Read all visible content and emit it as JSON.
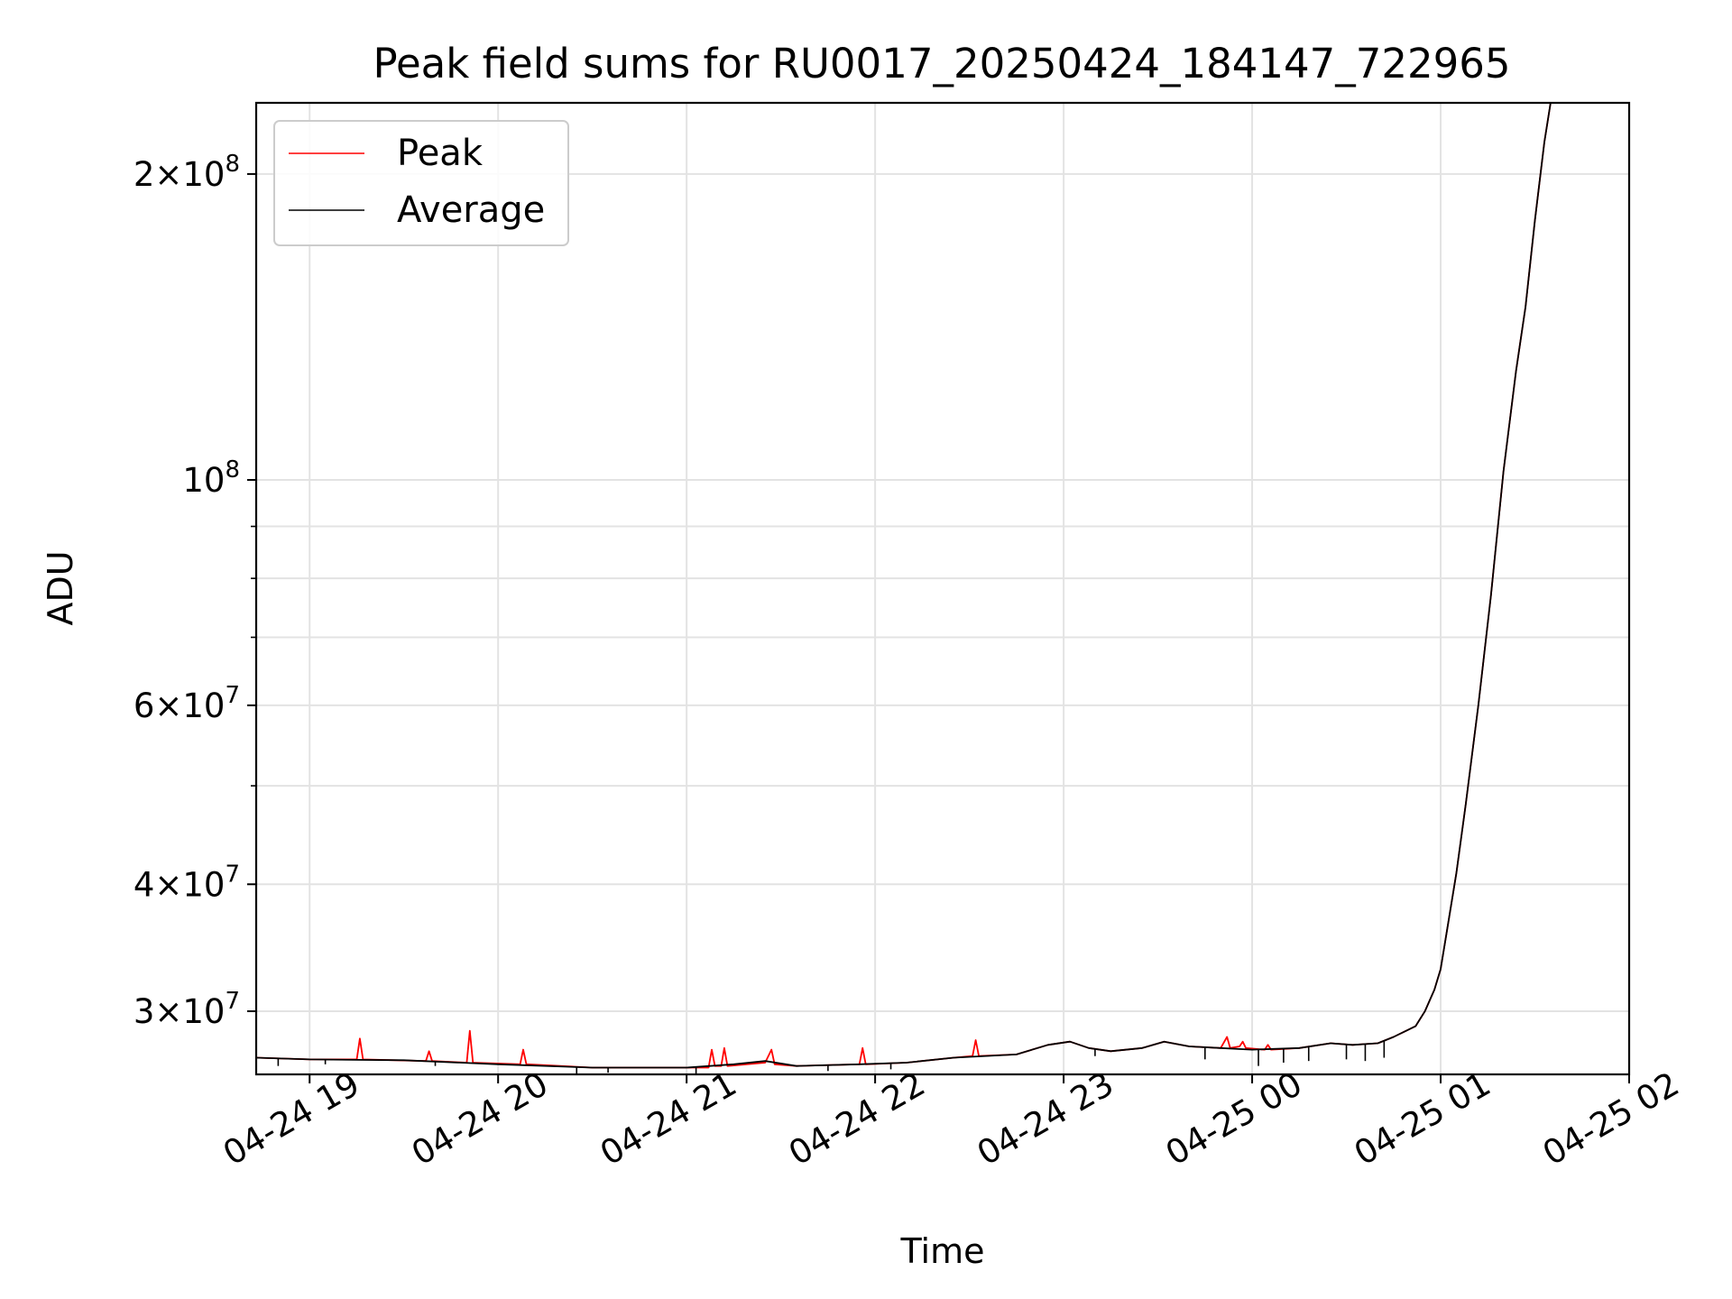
{
  "chart_data": {
    "type": "line",
    "title": "Peak field sums for RU0017_20250424_184147_722965",
    "xlabel": "Time",
    "ylabel": "ADU",
    "x_range": [
      "2025-04-24 18:43",
      "2025-04-25 02:00"
    ],
    "ylim": [
      26000000,
      235000000
    ],
    "yscale": "log",
    "grid": true,
    "legend_position": "top-left",
    "x_ticks": [
      {
        "t": "2025-04-24 19:00",
        "label": "04-24 19"
      },
      {
        "t": "2025-04-24 20:00",
        "label": "04-24 20"
      },
      {
        "t": "2025-04-24 21:00",
        "label": "04-24 21"
      },
      {
        "t": "2025-04-24 22:00",
        "label": "04-24 22"
      },
      {
        "t": "2025-04-24 23:00",
        "label": "04-24 23"
      },
      {
        "t": "2025-04-25 00:00",
        "label": "04-25 00"
      },
      {
        "t": "2025-04-25 01:00",
        "label": "04-25 01"
      },
      {
        "t": "2025-04-25 02:00",
        "label": "04-25 02"
      }
    ],
    "y_ticks": [
      {
        "v": 30000000,
        "label": "3×10⁷",
        "mant": "3",
        "exp": "7"
      },
      {
        "v": 40000000,
        "label": "4×10⁷",
        "mant": "4",
        "exp": "7"
      },
      {
        "v": 60000000,
        "label": "6×10⁷",
        "mant": "6",
        "exp": "7"
      },
      {
        "v": 100000000,
        "label": "10⁸",
        "mant": "",
        "exp": "8"
      },
      {
        "v": 200000000,
        "label": "2×10⁸",
        "mant": "2",
        "exp": "8"
      }
    ],
    "y_minor_ticks": [
      50000000,
      70000000,
      80000000,
      90000000
    ],
    "series": [
      {
        "name": "Peak",
        "color": "#ff0000",
        "points": [
          [
            "2025-04-24 18:43",
            27000000
          ],
          [
            "2025-04-24 19:00",
            26900000
          ],
          [
            "2025-04-24 19:15",
            26900000
          ],
          [
            "2025-04-24 19:16",
            28200000
          ],
          [
            "2025-04-24 19:17",
            26900000
          ],
          [
            "2025-04-24 19:37",
            26800000
          ],
          [
            "2025-04-24 19:38",
            27400000
          ],
          [
            "2025-04-24 19:39",
            26800000
          ],
          [
            "2025-04-24 19:50",
            26700000
          ],
          [
            "2025-04-24 19:51",
            28700000
          ],
          [
            "2025-04-24 19:52",
            26700000
          ],
          [
            "2025-04-24 20:07",
            26600000
          ],
          [
            "2025-04-24 20:08",
            27500000
          ],
          [
            "2025-04-24 20:09",
            26600000
          ],
          [
            "2025-04-24 20:30",
            26400000
          ],
          [
            "2025-04-24 21:00",
            26400000
          ],
          [
            "2025-04-24 21:07",
            26400000
          ],
          [
            "2025-04-24 21:08",
            27500000
          ],
          [
            "2025-04-24 21:09",
            26500000
          ],
          [
            "2025-04-24 21:11",
            26500000
          ],
          [
            "2025-04-24 21:12",
            27600000
          ],
          [
            "2025-04-24 21:13",
            26500000
          ],
          [
            "2025-04-24 21:25",
            26700000
          ],
          [
            "2025-04-24 21:27",
            27500000
          ],
          [
            "2025-04-24 21:28",
            26600000
          ],
          [
            "2025-04-24 21:35",
            26500000
          ],
          [
            "2025-04-24 21:55",
            26600000
          ],
          [
            "2025-04-24 21:56",
            27600000
          ],
          [
            "2025-04-24 21:57",
            26600000
          ],
          [
            "2025-04-24 22:10",
            26700000
          ],
          [
            "2025-04-24 22:25",
            27000000
          ],
          [
            "2025-04-24 22:31",
            27100000
          ],
          [
            "2025-04-24 22:32",
            28100000
          ],
          [
            "2025-04-24 22:33",
            27100000
          ],
          [
            "2025-04-24 22:45",
            27200000
          ],
          [
            "2025-04-24 22:55",
            27800000
          ],
          [
            "2025-04-24 23:02",
            28000000
          ],
          [
            "2025-04-24 23:08",
            27600000
          ],
          [
            "2025-04-24 23:15",
            27400000
          ],
          [
            "2025-04-24 23:25",
            27600000
          ],
          [
            "2025-04-24 23:32",
            28000000
          ],
          [
            "2025-04-24 23:40",
            27700000
          ],
          [
            "2025-04-24 23:50",
            27600000
          ],
          [
            "2025-04-24 23:52",
            28300000
          ],
          [
            "2025-04-24 23:53",
            27600000
          ],
          [
            "2025-04-24 23:56",
            27700000
          ],
          [
            "2025-04-24 23:57",
            28000000
          ],
          [
            "2025-04-24 23:58",
            27600000
          ],
          [
            "2025-04-25 00:04",
            27500000
          ],
          [
            "2025-04-25 00:05",
            27800000
          ],
          [
            "2025-04-25 00:06",
            27500000
          ],
          [
            "2025-04-25 00:15",
            27600000
          ],
          [
            "2025-04-25 00:25",
            27900000
          ],
          [
            "2025-04-25 00:32",
            27800000
          ],
          [
            "2025-04-25 00:40",
            27900000
          ],
          [
            "2025-04-25 00:45",
            28300000
          ],
          [
            "2025-04-25 00:52",
            29000000
          ],
          [
            "2025-04-25 00:55",
            30000000
          ],
          [
            "2025-04-25 00:58",
            31500000
          ],
          [
            "2025-04-25 01:00",
            33000000
          ],
          [
            "2025-04-25 01:02",
            36000000
          ],
          [
            "2025-04-25 01:05",
            41000000
          ],
          [
            "2025-04-25 01:08",
            48000000
          ],
          [
            "2025-04-25 01:12",
            60000000
          ],
          [
            "2025-04-25 01:16",
            77000000
          ],
          [
            "2025-04-25 01:20",
            102000000
          ],
          [
            "2025-04-25 01:24",
            128000000
          ],
          [
            "2025-04-25 01:27",
            148000000
          ],
          [
            "2025-04-25 01:30",
            180000000
          ],
          [
            "2025-04-25 01:33",
            215000000
          ],
          [
            "2025-04-25 01:35",
            235000000
          ]
        ]
      },
      {
        "name": "Average",
        "color": "#000000",
        "points": [
          [
            "2025-04-24 18:43",
            27000000
          ],
          [
            "2025-04-24 19:00",
            26900000
          ],
          [
            "2025-04-24 19:30",
            26850000
          ],
          [
            "2025-04-24 20:00",
            26600000
          ],
          [
            "2025-04-24 20:30",
            26400000
          ],
          [
            "2025-04-24 21:00",
            26400000
          ],
          [
            "2025-04-24 21:15",
            26600000
          ],
          [
            "2025-04-24 21:25",
            26800000
          ],
          [
            "2025-04-24 21:35",
            26500000
          ],
          [
            "2025-04-24 21:55",
            26600000
          ],
          [
            "2025-04-24 22:10",
            26700000
          ],
          [
            "2025-04-24 22:25",
            27000000
          ],
          [
            "2025-04-24 22:45",
            27200000
          ],
          [
            "2025-04-24 22:55",
            27800000
          ],
          [
            "2025-04-24 23:02",
            28000000
          ],
          [
            "2025-04-24 23:08",
            27600000
          ],
          [
            "2025-04-24 23:15",
            27400000
          ],
          [
            "2025-04-24 23:25",
            27600000
          ],
          [
            "2025-04-24 23:32",
            28000000
          ],
          [
            "2025-04-24 23:40",
            27700000
          ],
          [
            "2025-04-24 23:50",
            27600000
          ],
          [
            "2025-04-25 00:00",
            27500000
          ],
          [
            "2025-04-25 00:15",
            27600000
          ],
          [
            "2025-04-25 00:25",
            27900000
          ],
          [
            "2025-04-25 00:32",
            27800000
          ],
          [
            "2025-04-25 00:40",
            27900000
          ],
          [
            "2025-04-25 00:45",
            28300000
          ],
          [
            "2025-04-25 00:52",
            29000000
          ],
          [
            "2025-04-25 00:55",
            30000000
          ],
          [
            "2025-04-25 00:58",
            31500000
          ],
          [
            "2025-04-25 01:00",
            33000000
          ],
          [
            "2025-04-25 01:02",
            36000000
          ],
          [
            "2025-04-25 01:05",
            41000000
          ],
          [
            "2025-04-25 01:08",
            48000000
          ],
          [
            "2025-04-25 01:12",
            60000000
          ],
          [
            "2025-04-25 01:16",
            77000000
          ],
          [
            "2025-04-25 01:20",
            102000000
          ],
          [
            "2025-04-25 01:24",
            128000000
          ],
          [
            "2025-04-25 01:27",
            148000000
          ],
          [
            "2025-04-25 01:30",
            180000000
          ],
          [
            "2025-04-25 01:33",
            215000000
          ],
          [
            "2025-04-25 01:35",
            235000000
          ]
        ],
        "dips": [
          [
            "2025-04-24 18:50",
            26500000
          ],
          [
            "2025-04-24 19:05",
            26600000
          ],
          [
            "2025-04-24 19:40",
            26500000
          ],
          [
            "2025-04-24 20:25",
            26000000
          ],
          [
            "2025-04-24 20:35",
            26100000
          ],
          [
            "2025-04-24 21:03",
            26000000
          ],
          [
            "2025-04-24 21:45",
            26200000
          ],
          [
            "2025-04-24 22:05",
            26300000
          ],
          [
            "2025-04-24 23:10",
            27100000
          ],
          [
            "2025-04-24 23:45",
            26900000
          ],
          [
            "2025-04-25 00:02",
            26500000
          ],
          [
            "2025-04-25 00:10",
            26700000
          ],
          [
            "2025-04-25 00:18",
            26800000
          ],
          [
            "2025-04-25 00:30",
            26900000
          ],
          [
            "2025-04-25 00:36",
            26800000
          ],
          [
            "2025-04-25 00:42",
            27000000
          ]
        ]
      }
    ]
  }
}
